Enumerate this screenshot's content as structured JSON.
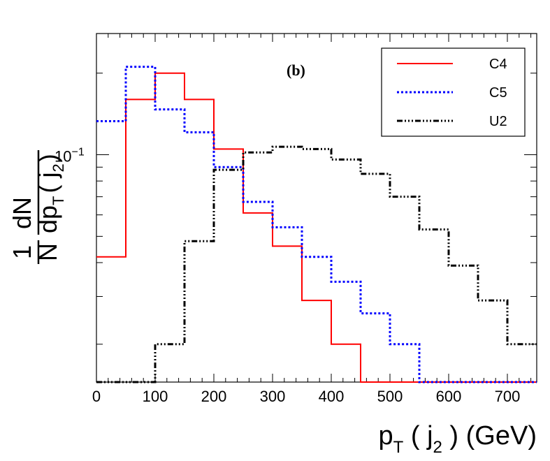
{
  "chart_data": {
    "type": "histogram",
    "panel_label": "(b)",
    "xlabel": {
      "base": "p",
      "sub": "T",
      "mid": " ( j",
      "sub2": "2",
      "end": " ) (GeV)"
    },
    "ylabel": {
      "num": "1",
      "den": "N",
      "num2": "dN",
      "den2": "dp",
      "den2_sub": "T",
      "den2_end": "( j",
      "den2_sub2": "2",
      "den2_close": ")"
    },
    "xlim": [
      0,
      750
    ],
    "ylim_log": [
      0.0145,
      0.28
    ],
    "xticks_labeled": [
      0,
      100,
      200,
      300,
      400,
      500,
      600,
      700
    ],
    "xtick_labels": [
      "0",
      "100",
      "200",
      "300",
      "400",
      "500",
      "600",
      "700"
    ],
    "ytick_label": {
      "base": "10",
      "exp": "−1",
      "value": 0.1
    },
    "bin_edges": [
      0,
      50,
      100,
      150,
      200,
      250,
      300,
      350,
      400,
      450,
      500,
      550,
      600,
      650,
      700,
      750
    ],
    "series": [
      {
        "name": "C4",
        "color": "#ff0000",
        "style": "solid",
        "values": [
          0.042,
          0.16,
          0.2,
          0.16,
          0.105,
          0.061,
          0.046,
          0.029,
          0.02,
          0.014,
          0.013,
          0.01,
          0.01,
          0.01,
          0.01
        ]
      },
      {
        "name": "C5",
        "color": "#0000ff",
        "style": "dotted",
        "values": [
          0.133,
          0.211,
          0.147,
          0.121,
          0.09,
          0.067,
          0.054,
          0.042,
          0.034,
          0.026,
          0.02,
          0.014,
          0.01,
          0.01,
          0.01
        ]
      },
      {
        "name": "U2",
        "color": "#000000",
        "style": "dashdot",
        "values": [
          0.01,
          0.01,
          0.02,
          0.048,
          0.088,
          0.102,
          0.107,
          0.105,
          0.096,
          0.085,
          0.07,
          0.053,
          0.039,
          0.029,
          0.02
        ]
      }
    ],
    "legend": {
      "position": "top-right"
    }
  }
}
